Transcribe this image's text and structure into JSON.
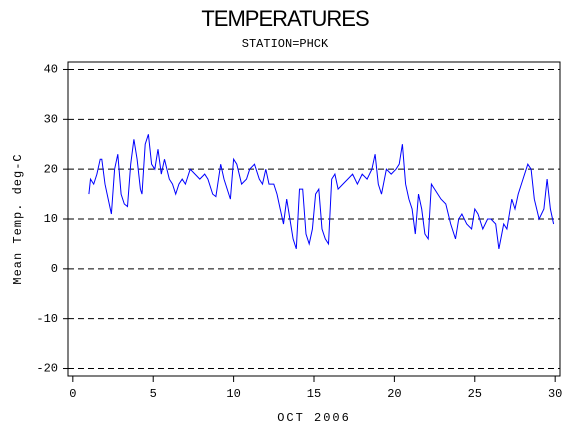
{
  "chart_data": {
    "type": "line",
    "title": "TEMPERATURES",
    "subtitle": "STATION=PHCK",
    "x_label": "OCT 2006",
    "y_label": "Mean Temp. deg-C",
    "color": "#0000ff",
    "xlim": [
      -0.3,
      30.3
    ],
    "xticks": [
      0,
      5,
      10,
      15,
      20,
      25,
      30
    ],
    "ylim": [
      -21.5,
      41.5
    ],
    "yticks": [
      -20,
      -10,
      0,
      10,
      20,
      30,
      40
    ],
    "grid": true,
    "x": [
      1.0,
      1.1,
      1.3,
      1.5,
      1.7,
      1.8,
      2.0,
      2.2,
      2.4,
      2.6,
      2.8,
      3.0,
      3.2,
      3.4,
      3.6,
      3.8,
      4.0,
      4.2,
      4.3,
      4.5,
      4.7,
      4.9,
      5.1,
      5.3,
      5.5,
      5.7,
      6.0,
      6.2,
      6.4,
      6.6,
      6.8,
      7.0,
      7.3,
      7.6,
      7.9,
      8.2,
      8.4,
      8.7,
      8.9,
      9.2,
      9.4,
      9.6,
      9.8,
      10.0,
      10.2,
      10.5,
      10.8,
      11.0,
      11.3,
      11.6,
      11.8,
      12.0,
      12.2,
      12.5,
      12.7,
      12.9,
      13.1,
      13.3,
      13.5,
      13.7,
      13.9,
      14.1,
      14.3,
      14.5,
      14.7,
      14.9,
      15.1,
      15.3,
      15.5,
      15.7,
      15.9,
      16.1,
      16.3,
      16.5,
      16.8,
      17.1,
      17.4,
      17.7,
      18.0,
      18.3,
      18.6,
      18.8,
      19.0,
      19.2,
      19.5,
      19.8,
      20.1,
      20.3,
      20.5,
      20.7,
      20.9,
      21.1,
      21.3,
      21.5,
      21.7,
      21.9,
      22.1,
      22.3,
      22.5,
      22.7,
      22.9,
      23.2,
      23.5,
      23.8,
      24.0,
      24.2,
      24.5,
      24.8,
      25.0,
      25.2,
      25.5,
      25.8,
      26.0,
      26.3,
      26.5,
      26.8,
      27.0,
      27.3,
      27.5,
      27.7,
      28.0,
      28.3,
      28.5,
      28.7,
      29.0,
      29.3,
      29.5,
      29.7,
      29.9
    ],
    "values": [
      15,
      18,
      17,
      19,
      22,
      22,
      17,
      14,
      11,
      20,
      23,
      15,
      13,
      12.5,
      21,
      26,
      22,
      16,
      15,
      25,
      27,
      21,
      20,
      24,
      19,
      22,
      18,
      17,
      15,
      17,
      18,
      17,
      20,
      19,
      18,
      19,
      18,
      15,
      14.5,
      21,
      18,
      16,
      14,
      22,
      21,
      17,
      18,
      20,
      21,
      18,
      17,
      20,
      17,
      17,
      15,
      12,
      9,
      14,
      10,
      6,
      4,
      16,
      16,
      7,
      5,
      8,
      15,
      16,
      8,
      6,
      5,
      18,
      19,
      16,
      17,
      18,
      19,
      17,
      19,
      18,
      20,
      23,
      17,
      15,
      20,
      19,
      20,
      21,
      25,
      17,
      14,
      12,
      7,
      15,
      12,
      7,
      6,
      17,
      16,
      15,
      14,
      13,
      9,
      6,
      10,
      11,
      9,
      8,
      12,
      11,
      8,
      10,
      10,
      9,
      4,
      9,
      8,
      14,
      12,
      15,
      18,
      21,
      20,
      14,
      10,
      12,
      18,
      12,
      9
    ]
  }
}
